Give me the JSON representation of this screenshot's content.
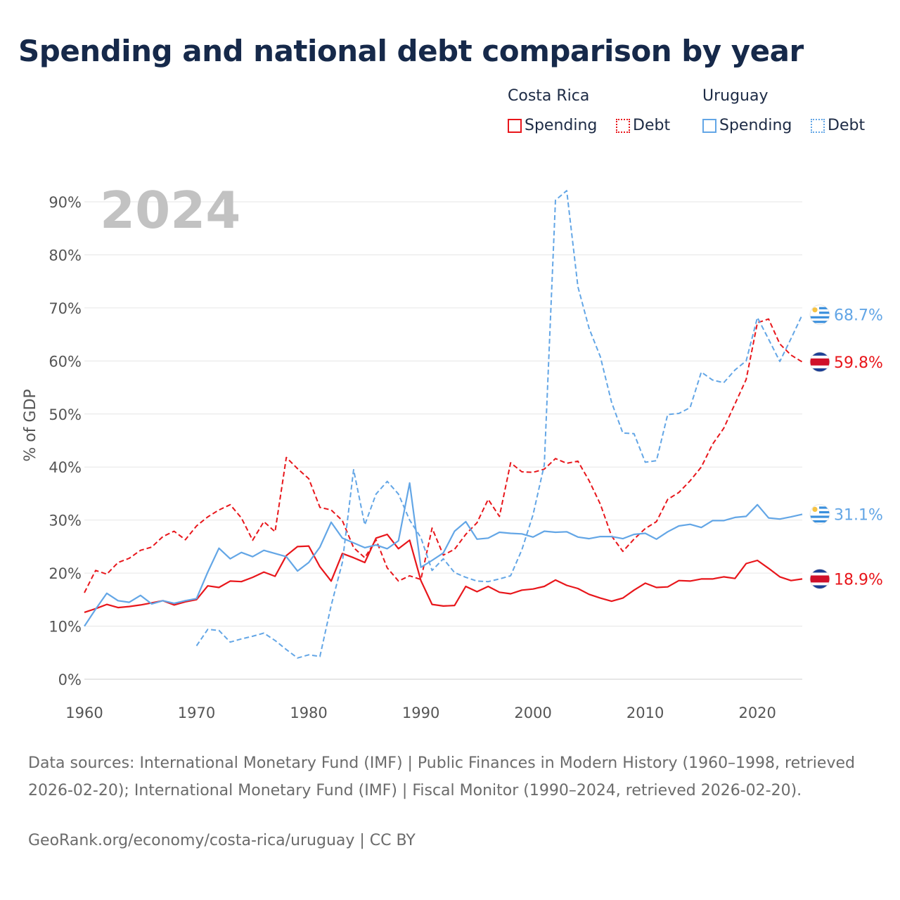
{
  "title": "Spending and national debt comparison by year",
  "legend": {
    "groups": [
      {
        "country": "Costa Rica",
        "color": "#e8161b",
        "items": [
          {
            "label": "Spending",
            "style": "solid"
          },
          {
            "label": "Debt",
            "style": "dotted"
          }
        ]
      },
      {
        "country": "Uruguay",
        "color": "#63a6e6",
        "items": [
          {
            "label": "Spending",
            "style": "solid"
          },
          {
            "label": "Debt",
            "style": "dotted"
          }
        ]
      }
    ]
  },
  "year_watermark": "2024",
  "footer": {
    "sources": "Data sources: International Monetary Fund (IMF) | Public Finances in Modern History (1960–1998, retrieved 2026-02-20); International Monetary Fund (IMF) | Fiscal Monitor (1990–2024, retrieved 2026-02-20).",
    "credit": "GeoRank.org/economy/costa-rica/uruguay | CC BY"
  },
  "chart_data": {
    "type": "line",
    "title": "Spending and national debt comparison by year",
    "xlabel": "",
    "ylabel": "% of GDP",
    "xlim": [
      1960,
      2024
    ],
    "ylim": [
      0,
      90
    ],
    "x_ticks": [
      1960,
      1970,
      1980,
      1990,
      2000,
      2010,
      2020
    ],
    "y_ticks": [
      0,
      10,
      20,
      30,
      40,
      50,
      60,
      70,
      80,
      90
    ],
    "y_tick_labels": [
      "0%",
      "10%",
      "20%",
      "30%",
      "40%",
      "50%",
      "60%",
      "70%",
      "80%",
      "90%"
    ],
    "grid": true,
    "series": [
      {
        "name": "Costa Rica Spending",
        "country": "Costa Rica",
        "kind": "spending",
        "color": "#e8161b",
        "dash": "solid",
        "end_label": "18.9%",
        "x": [
          1960,
          1961,
          1962,
          1963,
          1964,
          1965,
          1966,
          1967,
          1968,
          1969,
          1970,
          1971,
          1972,
          1973,
          1974,
          1975,
          1976,
          1977,
          1978,
          1979,
          1980,
          1981,
          1982,
          1983,
          1984,
          1985,
          1986,
          1987,
          1988,
          1989,
          1990,
          1991,
          1992,
          1993,
          1994,
          1995,
          1996,
          1997,
          1998,
          1999,
          2000,
          2001,
          2002,
          2003,
          2004,
          2005,
          2006,
          2007,
          2008,
          2009,
          2010,
          2011,
          2012,
          2013,
          2014,
          2015,
          2016,
          2017,
          2018,
          2019,
          2020,
          2021,
          2022,
          2023,
          2024
        ],
        "values": [
          12.6,
          13.3,
          14.1,
          13.5,
          13.7,
          14.0,
          14.4,
          14.8,
          14.0,
          14.6,
          15.0,
          17.6,
          17.3,
          18.5,
          18.4,
          19.2,
          20.2,
          19.4,
          23.3,
          25.0,
          25.1,
          21.2,
          18.5,
          23.7,
          22.9,
          22.0,
          26.6,
          27.3,
          24.6,
          26.2,
          18.6,
          14.1,
          13.8,
          13.9,
          17.5,
          16.5,
          17.5,
          16.4,
          16.1,
          16.8,
          17.0,
          17.5,
          18.7,
          17.7,
          17.1,
          16.0,
          15.3,
          14.7,
          15.3,
          16.8,
          18.1,
          17.3,
          17.4,
          18.6,
          18.5,
          18.9,
          18.9,
          19.3,
          19.0,
          21.8,
          22.4,
          20.9,
          19.3,
          18.6,
          18.9
        ]
      },
      {
        "name": "Costa Rica Debt",
        "country": "Costa Rica",
        "kind": "debt",
        "color": "#e8161b",
        "dash": "dashed",
        "end_label": "59.8%",
        "x": [
          1960,
          1961,
          1962,
          1963,
          1964,
          1965,
          1966,
          1967,
          1968,
          1969,
          1970,
          1971,
          1972,
          1973,
          1974,
          1975,
          1976,
          1977,
          1978,
          1979,
          1980,
          1981,
          1982,
          1983,
          1984,
          1985,
          1986,
          1987,
          1988,
          1989,
          1990,
          1991,
          1992,
          1993,
          1994,
          1995,
          1996,
          1997,
          1998,
          1999,
          2000,
          2001,
          2002,
          2003,
          2004,
          2005,
          2006,
          2007,
          2008,
          2009,
          2010,
          2011,
          2012,
          2013,
          2014,
          2015,
          2016,
          2017,
          2018,
          2019,
          2020,
          2021,
          2022,
          2023,
          2024
        ],
        "values": [
          16.3,
          20.5,
          19.8,
          22.0,
          22.8,
          24.3,
          24.9,
          26.9,
          27.9,
          26.3,
          28.9,
          30.6,
          31.9,
          32.9,
          30.4,
          26.2,
          29.7,
          27.8,
          41.8,
          39.7,
          37.8,
          32.4,
          31.9,
          29.9,
          24.8,
          22.9,
          26.3,
          21.0,
          18.5,
          19.5,
          18.8,
          28.5,
          23.4,
          24.5,
          27.3,
          29.5,
          33.9,
          30.7,
          40.8,
          39.1,
          39.0,
          39.6,
          41.6,
          40.7,
          41.1,
          37.4,
          33.0,
          27.0,
          24.1,
          26.4,
          28.4,
          29.7,
          33.9,
          35.2,
          37.4,
          40.0,
          44.3,
          47.3,
          51.9,
          56.5,
          67.2,
          67.9,
          63.2,
          61.1,
          59.8
        ]
      },
      {
        "name": "Uruguay Spending",
        "country": "Uruguay",
        "kind": "spending",
        "color": "#63a6e6",
        "dash": "solid",
        "end_label": "31.1%",
        "x": [
          1960,
          1961,
          1962,
          1963,
          1964,
          1965,
          1966,
          1967,
          1968,
          1969,
          1970,
          1971,
          1972,
          1973,
          1974,
          1975,
          1976,
          1977,
          1978,
          1979,
          1980,
          1981,
          1982,
          1983,
          1984,
          1985,
          1986,
          1987,
          1988,
          1989,
          1990,
          1991,
          1992,
          1993,
          1994,
          1995,
          1996,
          1997,
          1998,
          1999,
          2000,
          2001,
          2002,
          2003,
          2004,
          2005,
          2006,
          2007,
          2008,
          2009,
          2010,
          2011,
          2012,
          2013,
          2014,
          2015,
          2016,
          2017,
          2018,
          2019,
          2020,
          2021,
          2022,
          2023,
          2024
        ],
        "values": [
          10.0,
          13.2,
          16.2,
          14.8,
          14.5,
          15.8,
          14.2,
          14.8,
          14.3,
          14.8,
          15.2,
          20.2,
          24.7,
          22.7,
          23.9,
          23.1,
          24.3,
          23.7,
          23.1,
          20.4,
          22.0,
          24.9,
          29.6,
          26.6,
          25.7,
          24.8,
          25.3,
          24.6,
          26.1,
          37.0,
          21.1,
          22.4,
          23.8,
          27.9,
          29.7,
          26.4,
          26.6,
          27.7,
          27.5,
          27.4,
          26.8,
          27.9,
          27.7,
          27.8,
          26.8,
          26.5,
          26.9,
          26.9,
          26.5,
          27.3,
          27.5,
          26.4,
          27.8,
          28.9,
          29.2,
          28.6,
          29.9,
          29.9,
          30.5,
          30.7,
          32.9,
          30.4,
          30.2,
          30.6,
          31.1
        ]
      },
      {
        "name": "Uruguay Debt",
        "country": "Uruguay",
        "kind": "debt",
        "color": "#63a6e6",
        "dash": "dashed",
        "end_label": "68.7%",
        "x": [
          1970,
          1971,
          1972,
          1973,
          1974,
          1975,
          1976,
          1977,
          1978,
          1979,
          1980,
          1981,
          1982,
          1983,
          1984,
          1985,
          1986,
          1987,
          1988,
          1989,
          1990,
          1991,
          1992,
          1993,
          1994,
          1995,
          1996,
          1997,
          1998,
          1999,
          2000,
          2001,
          2002,
          2003,
          2004,
          2005,
          2006,
          2007,
          2008,
          2009,
          2010,
          2011,
          2012,
          2013,
          2014,
          2015,
          2016,
          2017,
          2018,
          2019,
          2020,
          2021,
          2022,
          2023,
          2024
        ],
        "values": [
          6.3,
          9.4,
          9.2,
          7.0,
          7.6,
          8.1,
          8.7,
          7.3,
          5.6,
          4.0,
          4.6,
          4.3,
          13.9,
          22.0,
          39.5,
          29.1,
          34.9,
          37.3,
          34.9,
          30.0,
          26.7,
          20.5,
          22.7,
          20.1,
          19.2,
          18.5,
          18.4,
          18.9,
          19.5,
          24.4,
          31.0,
          40.4,
          90.3,
          92.1,
          74.0,
          66.1,
          60.8,
          52.2,
          46.4,
          46.3,
          40.9,
          41.2,
          49.9,
          50.1,
          51.2,
          57.9,
          56.4,
          55.9,
          58.3,
          60.0,
          68.2,
          64.1,
          59.9,
          64.2,
          68.7
        ]
      }
    ]
  }
}
